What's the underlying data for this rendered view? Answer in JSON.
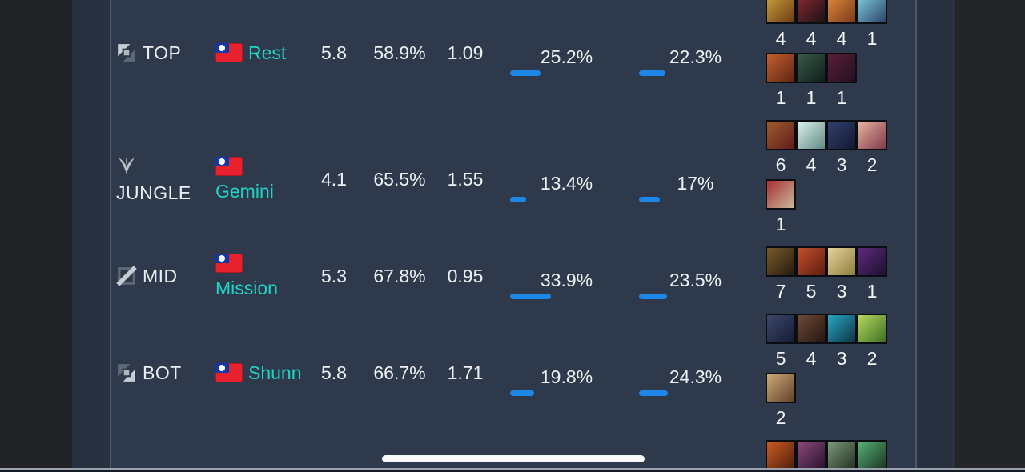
{
  "colors": {
    "background": "#2e3a4b",
    "bar_blue": "#1d87e8",
    "player_name_teal": "#1fd4c7",
    "text_white": "#eef1f4",
    "scroll_pill": "#f7f9fb"
  },
  "rows": [
    {
      "position": {
        "label": "TOP",
        "icon": "top"
      },
      "player": {
        "name": "Rest",
        "flag": "taiwan"
      },
      "stats": {
        "kda": "5.8",
        "winrate": "58.9%",
        "ratio": "1.09"
      },
      "bar1": {
        "label": "25.2%",
        "pct": 25.2
      },
      "bar2": {
        "label": "22.3%",
        "pct": 22.3
      },
      "champions": [
        {
          "count": "4",
          "art": [
            "#caa23a",
            "#6b3a17"
          ]
        },
        {
          "count": "4",
          "art": [
            "#8a2a33",
            "#1a1216"
          ]
        },
        {
          "count": "4",
          "art": [
            "#e08a3c",
            "#7a3a1a"
          ]
        },
        {
          "count": "1",
          "art": [
            "#7ecbe0",
            "#2c4668"
          ]
        },
        {
          "count": "1",
          "art": [
            "#c2602e",
            "#5e2414"
          ]
        },
        {
          "count": "1",
          "art": [
            "#3a5a4a",
            "#0e1f1a"
          ]
        },
        {
          "count": "1",
          "art": [
            "#5a1e38",
            "#23101f"
          ]
        }
      ]
    },
    {
      "position": {
        "label": "JUNGLE",
        "icon": "jungle"
      },
      "player": {
        "name": "Gemini",
        "flag": "taiwan"
      },
      "stats": {
        "kda": "4.1",
        "winrate": "65.5%",
        "ratio": "1.55"
      },
      "bar1": {
        "label": "13.4%",
        "pct": 13.4
      },
      "bar2": {
        "label": "17%",
        "pct": 17
      },
      "champions": [
        {
          "count": "6",
          "art": [
            "#a05a2e",
            "#5e1e1a"
          ]
        },
        {
          "count": "4",
          "art": [
            "#dff0ec",
            "#5f8a84"
          ]
        },
        {
          "count": "3",
          "art": [
            "#33406e",
            "#101830"
          ]
        },
        {
          "count": "2",
          "art": [
            "#e8b29e",
            "#7e3a4a"
          ]
        },
        {
          "count": "1",
          "art": [
            "#a83030",
            "#c9b9a0"
          ]
        }
      ]
    },
    {
      "position": {
        "label": "MID",
        "icon": "mid"
      },
      "player": {
        "name": "Mission",
        "flag": "taiwan"
      },
      "stats": {
        "kda": "5.3",
        "winrate": "67.8%",
        "ratio": "0.95"
      },
      "bar1": {
        "label": "33.9%",
        "pct": 33.9
      },
      "bar2": {
        "label": "23.5%",
        "pct": 23.5
      },
      "champions": [
        {
          "count": "7",
          "art": [
            "#7a5a28",
            "#241a10"
          ]
        },
        {
          "count": "5",
          "art": [
            "#c2512a",
            "#5e1c12"
          ]
        },
        {
          "count": "3",
          "art": [
            "#e3d39a",
            "#907c3e"
          ]
        },
        {
          "count": "1",
          "art": [
            "#5e2a7a",
            "#1c1030"
          ]
        }
      ]
    },
    {
      "position": {
        "label": "BOT",
        "icon": "bot"
      },
      "player": {
        "name": "Shunn",
        "flag": "taiwan"
      },
      "stats": {
        "kda": "5.8",
        "winrate": "66.7%",
        "ratio": "1.71"
      },
      "bar1": {
        "label": "19.8%",
        "pct": 19.8
      },
      "bar2": {
        "label": "24.3%",
        "pct": 24.3
      },
      "champions": [
        {
          "count": "5",
          "art": [
            "#3c4668",
            "#141c34"
          ]
        },
        {
          "count": "4",
          "art": [
            "#6e4a38",
            "#241610"
          ]
        },
        {
          "count": "3",
          "art": [
            "#2aa6c2",
            "#0c3244"
          ]
        },
        {
          "count": "2",
          "art": [
            "#b5d85e",
            "#3f6e22"
          ]
        },
        {
          "count": "2",
          "art": [
            "#d0a878",
            "#5e4228"
          ]
        }
      ]
    },
    {
      "position": null,
      "player": null,
      "stats": null,
      "bar1": null,
      "bar2": null,
      "champions": [
        {
          "count": null,
          "art": [
            "#cc5c22",
            "#4e1e0c"
          ]
        },
        {
          "count": null,
          "art": [
            "#8a4a7a",
            "#2a1230"
          ]
        },
        {
          "count": null,
          "art": [
            "#7a9a7a",
            "#24301f"
          ]
        },
        {
          "count": null,
          "art": [
            "#55b273",
            "#1c3424"
          ]
        }
      ]
    }
  ]
}
